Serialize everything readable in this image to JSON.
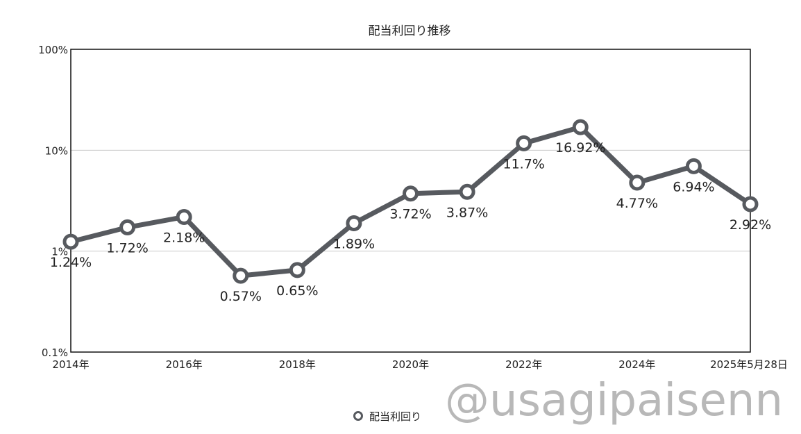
{
  "chart_data": {
    "type": "line",
    "title": "配当利回り推移",
    "y_scale": "log",
    "ylim": [
      0.1,
      100
    ],
    "y_ticks": [
      {
        "value": 0.1,
        "label": "0.1%"
      },
      {
        "value": 1,
        "label": "1%"
      },
      {
        "value": 10,
        "label": "10%"
      },
      {
        "value": 100,
        "label": "100%"
      }
    ],
    "grid": true,
    "legend_position": "bottom-center",
    "series": [
      {
        "name": "配当利回り",
        "color": "#575a5f",
        "points": [
          {
            "x_index": 0,
            "value": 1.24,
            "label": "1.24%"
          },
          {
            "x_index": 1,
            "value": 1.72,
            "label": "1.72%"
          },
          {
            "x_index": 2,
            "value": 2.18,
            "label": "2.18%"
          },
          {
            "x_index": 3,
            "value": 0.57,
            "label": "0.57%"
          },
          {
            "x_index": 4,
            "value": 0.65,
            "label": "0.65%"
          },
          {
            "x_index": 5,
            "value": 1.89,
            "label": "1.89%"
          },
          {
            "x_index": 6,
            "value": 3.72,
            "label": "3.72%"
          },
          {
            "x_index": 7,
            "value": 3.87,
            "label": "3.87%"
          },
          {
            "x_index": 8,
            "value": 11.7,
            "label": "11.7%"
          },
          {
            "x_index": 9,
            "value": 16.92,
            "label": "16.92%"
          },
          {
            "x_index": 10,
            "value": 4.77,
            "label": "4.77%"
          },
          {
            "x_index": 11,
            "value": 6.94,
            "label": "6.94%"
          },
          {
            "x_index": 12,
            "value": 2.92,
            "label": "2.92%"
          }
        ]
      }
    ],
    "x_tick_labels": [
      {
        "x_index": 0,
        "label": "2014年"
      },
      {
        "x_index": 2,
        "label": "2016年"
      },
      {
        "x_index": 4,
        "label": "2018年"
      },
      {
        "x_index": 6,
        "label": "2020年"
      },
      {
        "x_index": 8,
        "label": "2022年"
      },
      {
        "x_index": 10,
        "label": "2024年"
      },
      {
        "x_index": 12,
        "label": "2025年5月28日"
      }
    ],
    "x_count": 13
  },
  "watermark": "@usagipaisenn"
}
